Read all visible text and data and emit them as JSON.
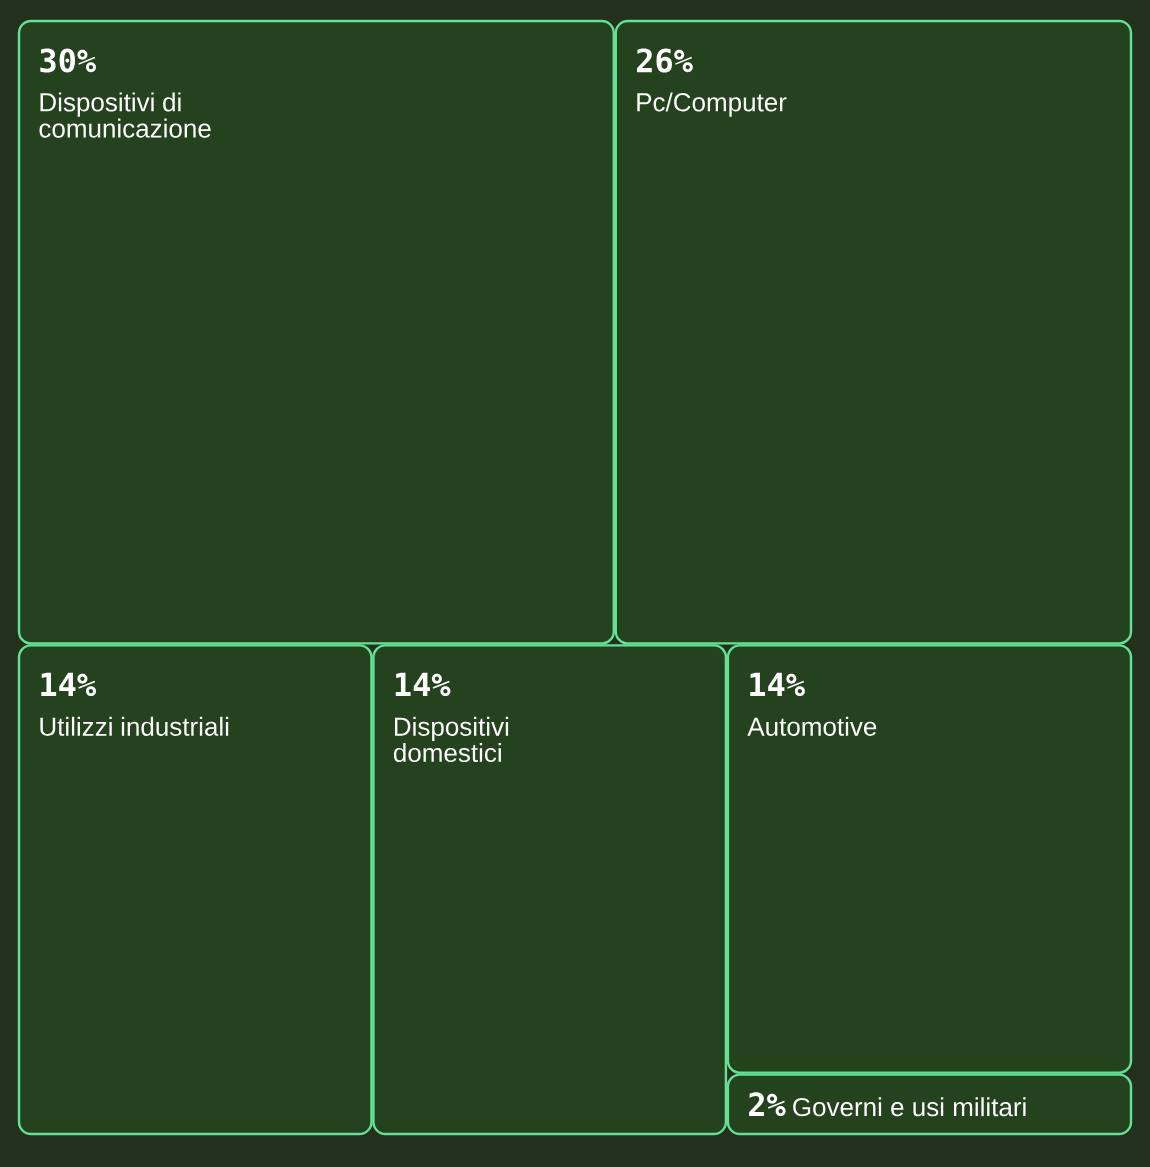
{
  "chart_data": {
    "type": "other",
    "categories": [
      "Dispositivi di comunicazione",
      "Pc/Computer",
      "Utilizzi industriali",
      "Dispositivi domestici",
      "Automotive",
      "Governi e usi militari"
    ],
    "values": [
      30,
      26,
      14,
      14,
      14,
      2
    ],
    "value_labels": [
      "30%",
      "26%",
      "14%",
      "14%",
      "14%",
      "2%"
    ],
    "colors": [
      "#25421f",
      "#25421f",
      "#25421f",
      "#25421f",
      "#25421f",
      "#25421f"
    ]
  }
}
